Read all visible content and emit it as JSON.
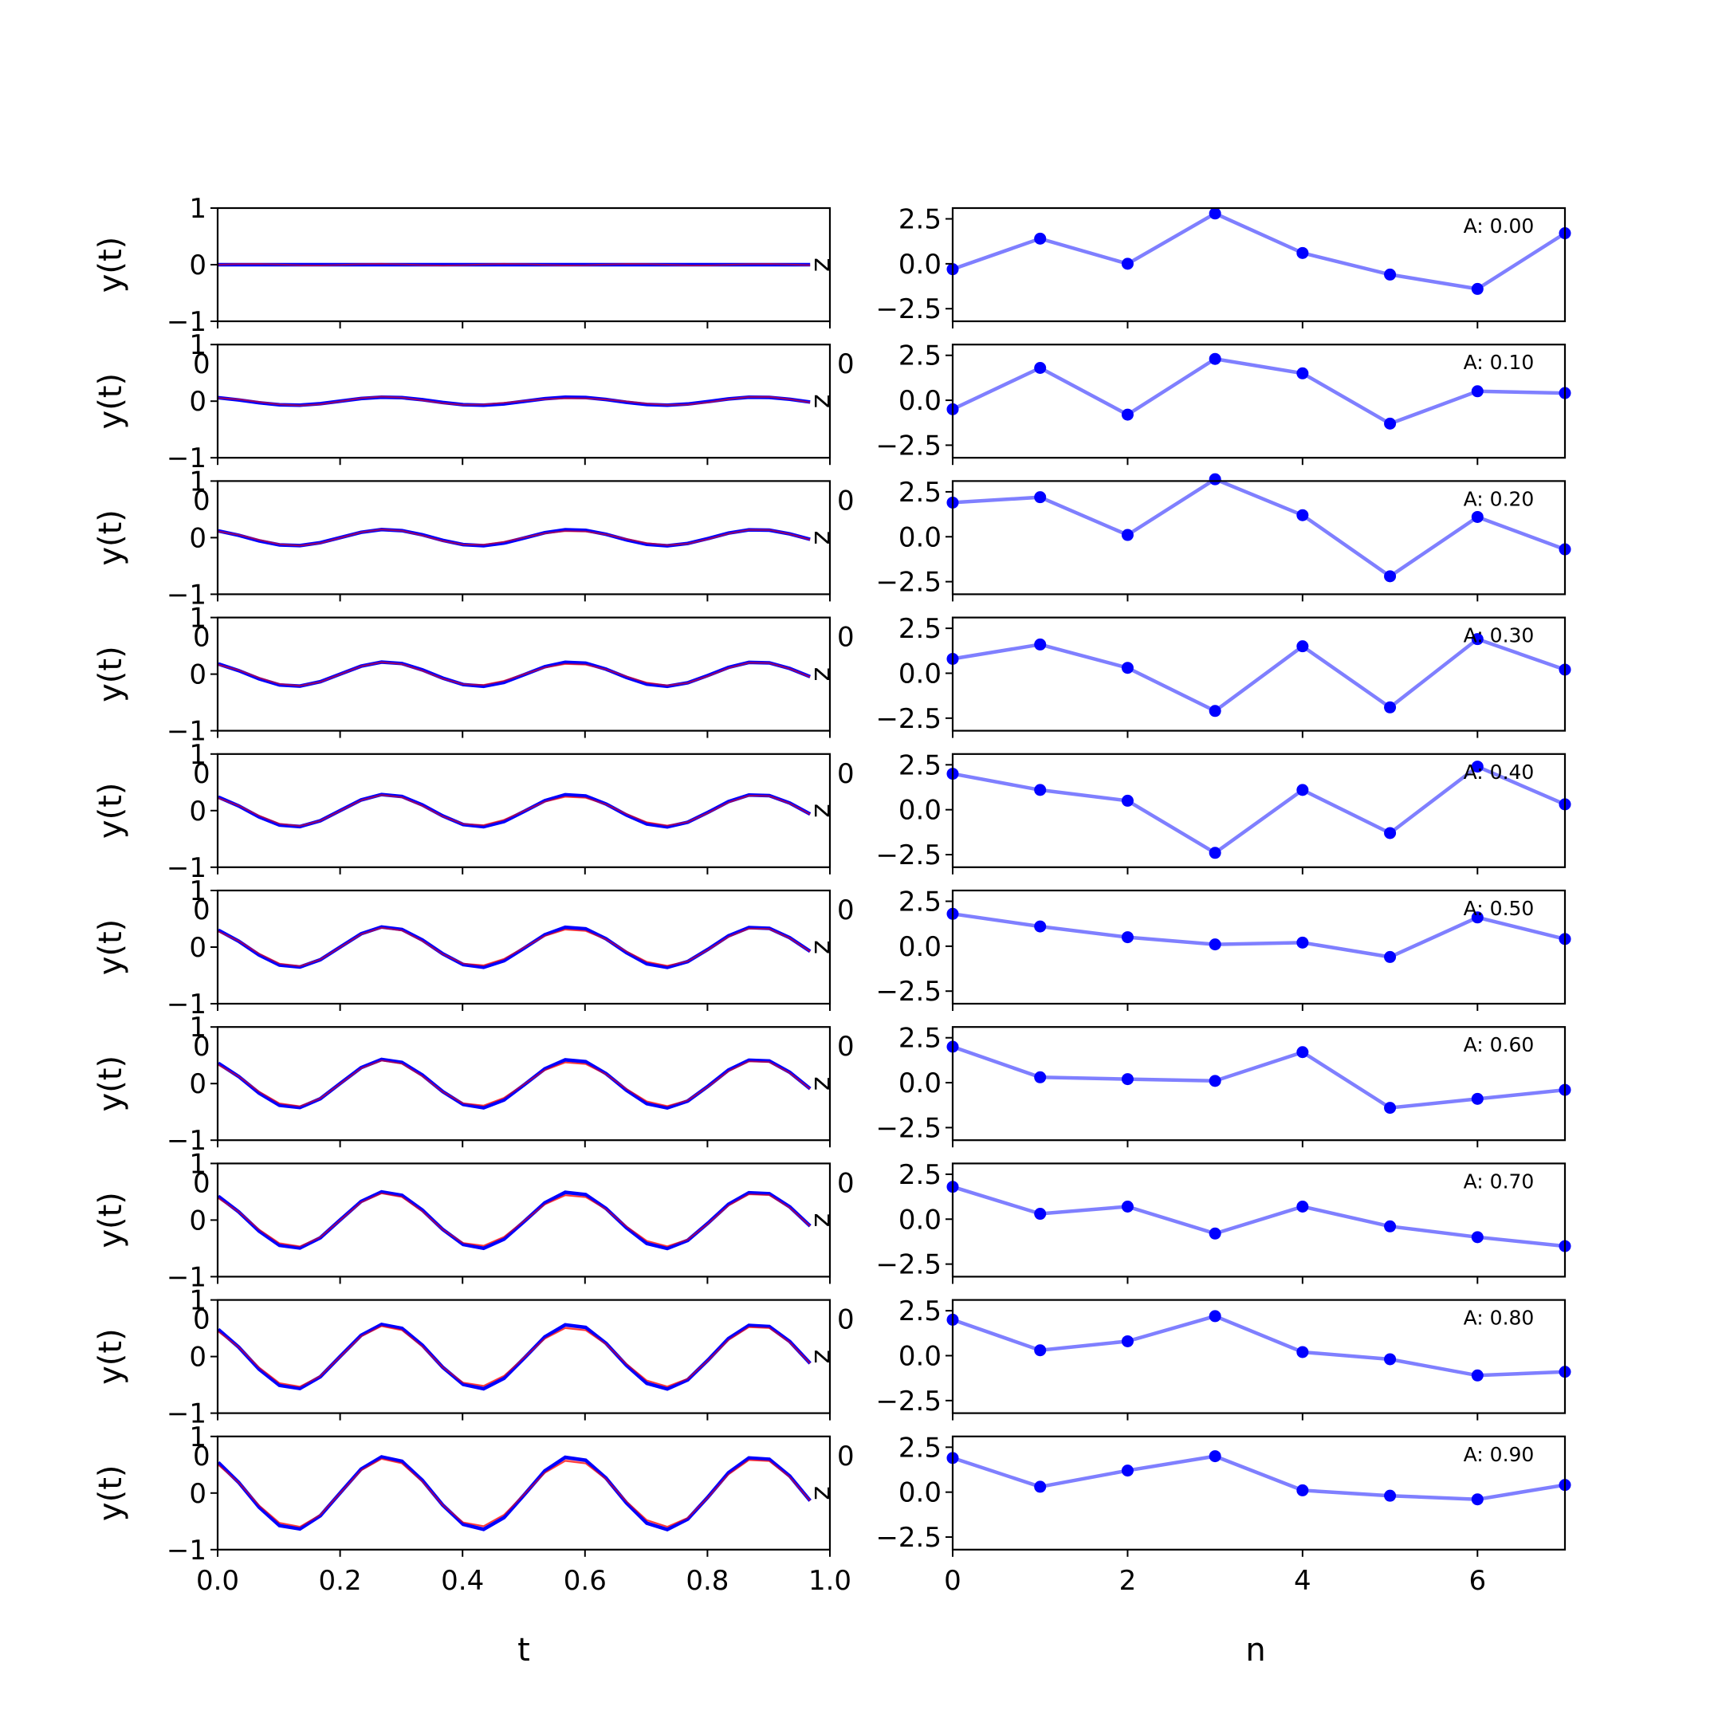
{
  "chart_data": {
    "type": "line",
    "left_column": {
      "ylabel": "y(t)",
      "xlabel": "t",
      "xlim": [
        0.0,
        1.0
      ],
      "ylim": [
        -1,
        1
      ],
      "xticks": [
        "0.0",
        "0.2",
        "0.4",
        "0.6",
        "0.8",
        "1.0"
      ],
      "yticks": [
        "−1",
        "0",
        "1"
      ],
      "marker_text": "z",
      "overflow_tick_text": "0",
      "series_colors": {
        "red": "#ff0000",
        "blue": "#0000ff"
      }
    },
    "right_column": {
      "xlabel": "n",
      "xlim": [
        0,
        7
      ],
      "ylim": [
        -3.2,
        3.1
      ],
      "xticks": [
        "0",
        "2",
        "4",
        "6"
      ],
      "yticks": [
        "2.5",
        "0.0",
        "−2.5"
      ],
      "line_color": "#0000ff"
    },
    "panels": [
      {
        "annotation": "A: 0.00",
        "amplitude": 0.0,
        "right_values": [
          -0.3,
          1.4,
          0.0,
          2.8,
          0.6,
          -0.6,
          -1.4,
          1.7
        ]
      },
      {
        "annotation": "A: 0.10",
        "amplitude": 0.1,
        "right_values": [
          -0.5,
          1.8,
          -0.8,
          2.3,
          1.5,
          -1.3,
          0.5,
          0.4
        ]
      },
      {
        "annotation": "A: 0.20",
        "amplitude": 0.2,
        "right_values": [
          1.9,
          2.2,
          0.1,
          3.2,
          1.2,
          -2.2,
          1.1,
          -0.7
        ]
      },
      {
        "annotation": "A: 0.30",
        "amplitude": 0.3,
        "right_values": [
          0.8,
          1.6,
          0.3,
          -2.1,
          1.5,
          -1.9,
          1.9,
          0.2
        ]
      },
      {
        "annotation": "A: 0.40",
        "amplitude": 0.4,
        "right_values": [
          2.0,
          1.1,
          0.5,
          -2.4,
          1.1,
          -1.3,
          2.4,
          0.3
        ]
      },
      {
        "annotation": "A: 0.50",
        "amplitude": 0.5,
        "right_values": [
          1.8,
          1.1,
          0.5,
          0.1,
          0.2,
          -0.6,
          1.6,
          0.4
        ]
      },
      {
        "annotation": "A: 0.60",
        "amplitude": 0.6,
        "right_values": [
          2.0,
          0.3,
          0.2,
          0.1,
          1.7,
          -1.4,
          -0.9,
          -0.4
        ]
      },
      {
        "annotation": "A: 0.70",
        "amplitude": 0.7,
        "right_values": [
          1.8,
          0.3,
          0.7,
          -0.8,
          0.7,
          -0.4,
          -1.0,
          -1.5
        ]
      },
      {
        "annotation": "A: 0.80",
        "amplitude": 0.8,
        "right_values": [
          2.0,
          0.3,
          0.8,
          2.2,
          0.2,
          -0.2,
          -1.1,
          -0.9
        ]
      },
      {
        "annotation": "A: 0.90",
        "amplitude": 0.9,
        "right_values": [
          1.9,
          0.3,
          1.2,
          2.0,
          0.1,
          -0.2,
          -0.4,
          0.4
        ]
      }
    ]
  }
}
